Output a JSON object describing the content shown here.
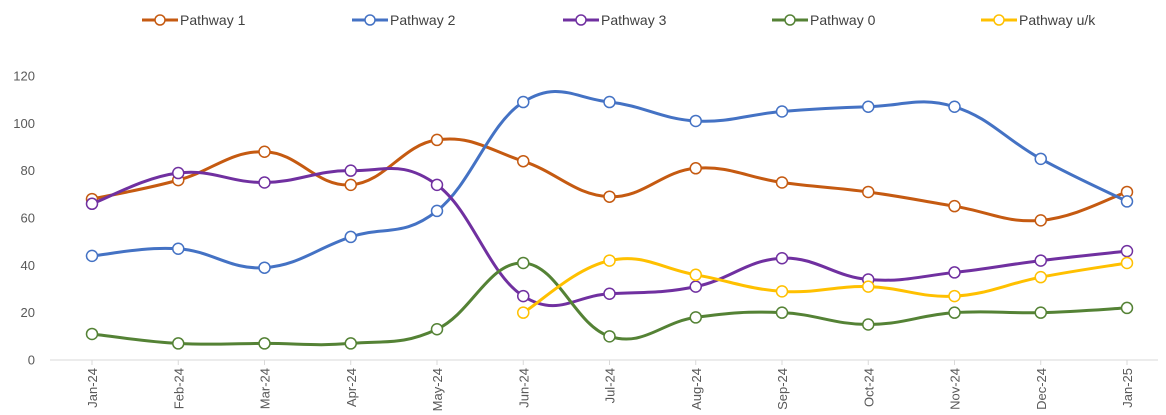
{
  "chart_data": {
    "type": "line",
    "title": "",
    "xlabel": "",
    "ylabel": "",
    "categories": [
      "Jan-24",
      "Feb-24",
      "Mar-24",
      "Apr-24",
      "May-24",
      "Jun-24",
      "Jul-24",
      "Aug-24",
      "Sep-24",
      "Oct-24",
      "Nov-24",
      "Dec-24",
      "Jan-25"
    ],
    "ylim": [
      0,
      120
    ],
    "yticks": [
      0,
      20,
      40,
      60,
      80,
      100,
      120
    ],
    "grid": false,
    "legend_position": "top",
    "smooth": true,
    "series": [
      {
        "name": "Pathway 1",
        "color": "#C55A11",
        "values": [
          68,
          76,
          88,
          74,
          93,
          84,
          69,
          81,
          75,
          71,
          65,
          59,
          71
        ]
      },
      {
        "name": "Pathway 2",
        "color": "#4472C4",
        "values": [
          44,
          47,
          39,
          52,
          63,
          109,
          109,
          101,
          105,
          107,
          107,
          85,
          67
        ]
      },
      {
        "name": "Pathway 3",
        "color": "#7030A0",
        "values": [
          66,
          79,
          75,
          80,
          74,
          27,
          28,
          31,
          43,
          34,
          37,
          42,
          46
        ]
      },
      {
        "name": "Pathway 0",
        "color": "#548235",
        "values": [
          11,
          7,
          7,
          7,
          13,
          41,
          10,
          18,
          20,
          15,
          20,
          20,
          22
        ]
      },
      {
        "name": "Pathway u/k",
        "color": "#FFC000",
        "values": [
          null,
          null,
          null,
          null,
          null,
          20,
          42,
          36,
          29,
          31,
          27,
          35,
          41
        ]
      }
    ]
  }
}
